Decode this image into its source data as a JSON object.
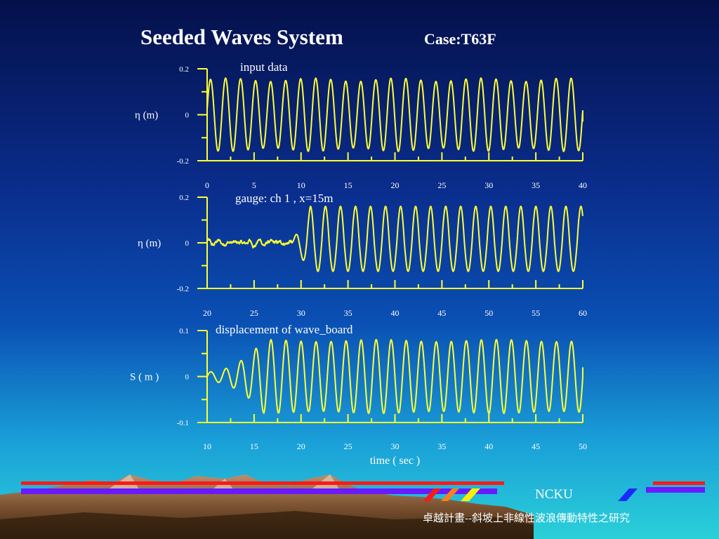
{
  "slide": {
    "title": "Seeded Waves System",
    "case_label": "Case:T63F",
    "footer_org": "NCKU",
    "footer_project": "卓越計畫--斜坡上非線性波浪傳動特性之研究"
  },
  "colors": {
    "trace": "#ffff33",
    "axis": "#ffff33",
    "text": "#ffffff",
    "bar_red": "#ff1a1a",
    "bar_purple": "#6a1aff",
    "stripe_orange": "#ff7f1a",
    "stripe_yellow": "#ffee00",
    "stripe_blue": "#1a2aff"
  },
  "chart_data": [
    {
      "type": "line",
      "annotation": "input data",
      "ylabel": "η (m)",
      "xlabel": "",
      "xlim": [
        0,
        40
      ],
      "ylim": [
        -0.2,
        0.2
      ],
      "xticks": [
        0,
        5,
        10,
        15,
        20,
        25,
        30,
        35,
        40
      ],
      "yticks": [
        -0.2,
        0,
        0.2
      ],
      "ytick_labels": [
        "-0.2",
        "0",
        "0.2"
      ],
      "grid": false,
      "series": [
        {
          "amplitude": 0.152,
          "period": 1.6,
          "start_time": 0.0,
          "end_time": 40.0,
          "end_value": -0.03,
          "values_sampled": {
            "x": [
              0,
              0.4,
              0.8,
              1.2,
              1.6,
              2.0,
              2.4,
              2.8,
              3.2,
              10,
              20,
              30,
              40
            ],
            "y": [
              0.02,
              0.15,
              0.0,
              -0.15,
              0.02,
              0.15,
              0.0,
              -0.15,
              0.02,
              0.0,
              0.0,
              0.0,
              -0.03
            ]
          }
        }
      ]
    },
    {
      "type": "line",
      "annotation": "gauge: ch 1 , x=15m",
      "ylabel": "η (m)",
      "xlabel": "",
      "xlim": [
        20,
        60
      ],
      "ylim": [
        -0.2,
        0.2
      ],
      "xticks": [
        20,
        25,
        30,
        35,
        40,
        45,
        50,
        55,
        60
      ],
      "yticks": [
        -0.2,
        0,
        0.2
      ],
      "ytick_labels": [
        "-0.2",
        "0",
        "0.2"
      ],
      "grid": false,
      "series": [
        {
          "noise_amplitude": 0.02,
          "noise_end_time": 29.0,
          "wave_start_time": 29.0,
          "amplitude": 0.13,
          "period": 1.6,
          "peak_max": 0.19,
          "trough_min": -0.14,
          "end_time": 60.0
        }
      ]
    },
    {
      "type": "line",
      "annotation": "displacement of wave_board",
      "ylabel": "S ( m )",
      "xlabel": "time ( sec )",
      "xlim": [
        10,
        50
      ],
      "ylim": [
        -0.1,
        0.1
      ],
      "xticks": [
        10,
        15,
        20,
        25,
        30,
        35,
        40,
        45,
        50
      ],
      "yticks": [
        -0.1,
        0,
        0.1
      ],
      "ytick_labels": [
        "-0.1",
        "0",
        "0.1"
      ],
      "grid": false,
      "series": [
        {
          "ramp_start_time": 10.0,
          "ramp_end_time": 16.0,
          "initial_amplitude": 0.01,
          "amplitude": 0.078,
          "period": 1.6,
          "end_time": 50.0,
          "end_value": 0.02
        }
      ]
    }
  ]
}
